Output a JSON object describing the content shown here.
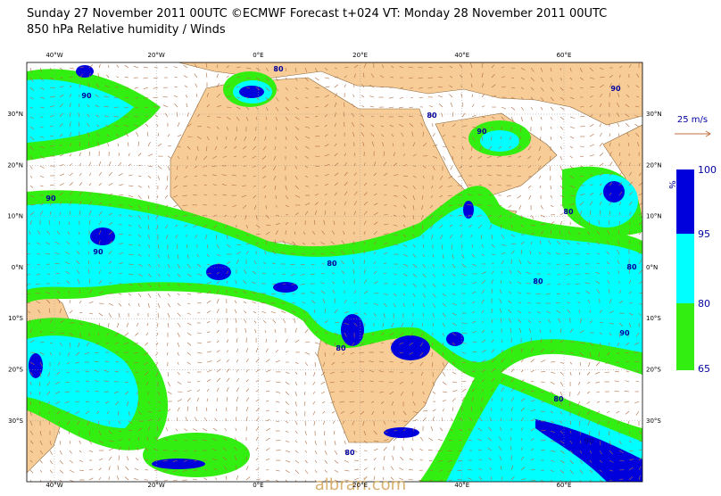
{
  "header": {
    "title": "Sunday 27 November 2011 00UTC ©ECMWF Forecast t+024 VT: Monday 28 November 2011 00UTC",
    "subtitle": "850 hPa Relative humidity / Winds"
  },
  "map": {
    "lon_labels": [
      "40°W",
      "20°W",
      "0°E",
      "20°E",
      "40°E",
      "60°E"
    ],
    "lat_labels": [
      "30°N",
      "20°N",
      "10°N",
      "0°N",
      "10°S",
      "20°S",
      "30°S"
    ],
    "contour_labels": [
      90,
      80,
      90,
      80,
      90,
      90,
      80,
      90,
      80,
      80,
      80,
      90,
      80,
      80,
      80,
      90
    ]
  },
  "wind_legend": {
    "label": "25 m/s"
  },
  "colorbar": {
    "unit": "%",
    "labels": [
      100,
      95,
      80,
      65
    ]
  },
  "watermark": "albrari.com"
}
